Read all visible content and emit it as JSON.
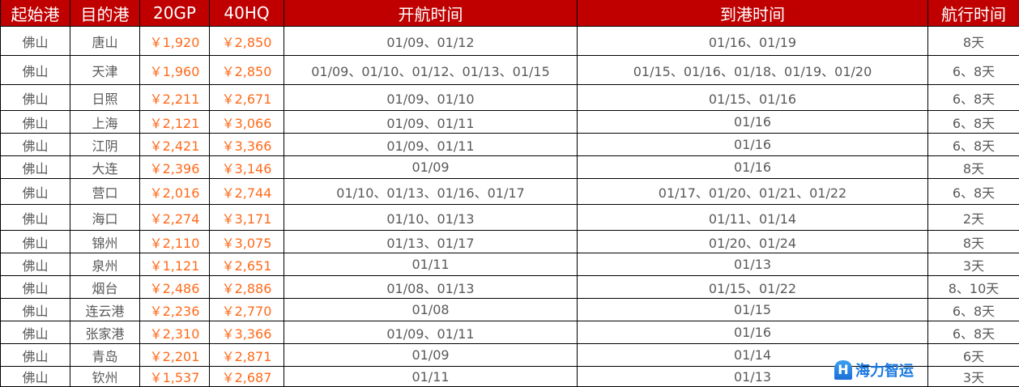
{
  "headers": [
    "起始港",
    "目的港",
    "20GP",
    "40HQ",
    "开航时间",
    "到港时间",
    "航行时间"
  ],
  "rows": [
    [
      "佛山",
      "唐山",
      "￥1,920",
      "￥2,850",
      "01/09、01/12",
      "01/16、01/19",
      "8天"
    ],
    [
      "佛山",
      "天津",
      "￥1,960",
      "￥2,850",
      "01/09、01/10、01/12、01/13、01/15",
      "01/15、01/16、01/18、01/19、01/20",
      "6、8天"
    ],
    [
      "佛山",
      "日照",
      "￥2,211",
      "￥2,671",
      "01/09、01/10",
      "01/15、01/16",
      "6、8天"
    ],
    [
      "佛山",
      "上海",
      "￥2,121",
      "￥3,066",
      "01/09、01/11",
      "01/16",
      "6、8天"
    ],
    [
      "佛山",
      "江阴",
      "￥2,421",
      "￥3,366",
      "01/09、01/11",
      "01/16",
      "6、8天"
    ],
    [
      "佛山",
      "大连",
      "￥2,396",
      "￥3,146",
      "01/09",
      "01/16",
      "8天"
    ],
    [
      "佛山",
      "营口",
      "￥2,016",
      "￥2,744",
      "01/10、01/13、01/16、01/17",
      "01/17、01/20、01/21、01/22",
      "6、8天"
    ],
    [
      "佛山",
      "海口",
      "￥2,274",
      "￥3,171",
      "01/10、01/13",
      "01/11、01/14",
      "2天"
    ],
    [
      "佛山",
      "锦州",
      "￥2,110",
      "￥3,075",
      "01/13、01/17",
      "01/20、01/24",
      "8天"
    ],
    [
      "佛山",
      "泉州",
      "￥1,121",
      "￥2,651",
      "01/11",
      "01/13",
      "3天"
    ],
    [
      "佛山",
      "烟台",
      "￥2,486",
      "￥2,886",
      "01/08、01/13",
      "01/15、01/22",
      "8、10天"
    ],
    [
      "佛山",
      "连云港",
      "￥2,236",
      "￥2,770",
      "01/08",
      "01/15",
      "6、8天"
    ],
    [
      "佛山",
      "张家港",
      "￥2,310",
      "￥3,366",
      "01/09、01/11",
      "01/16",
      "6、8天"
    ],
    [
      "佛山",
      "青岛",
      "￥2,201",
      "￥2,871",
      "01/09",
      "01/14",
      "6天"
    ],
    [
      "佛山",
      "钦州",
      "￥1,537",
      "￥2,687",
      "01/11",
      "01/13",
      "3天"
    ]
  ],
  "logo": {
    "text": "海力智运"
  },
  "colors": {
    "header_bg": "#c00000",
    "price": "#ff6a1a"
  }
}
